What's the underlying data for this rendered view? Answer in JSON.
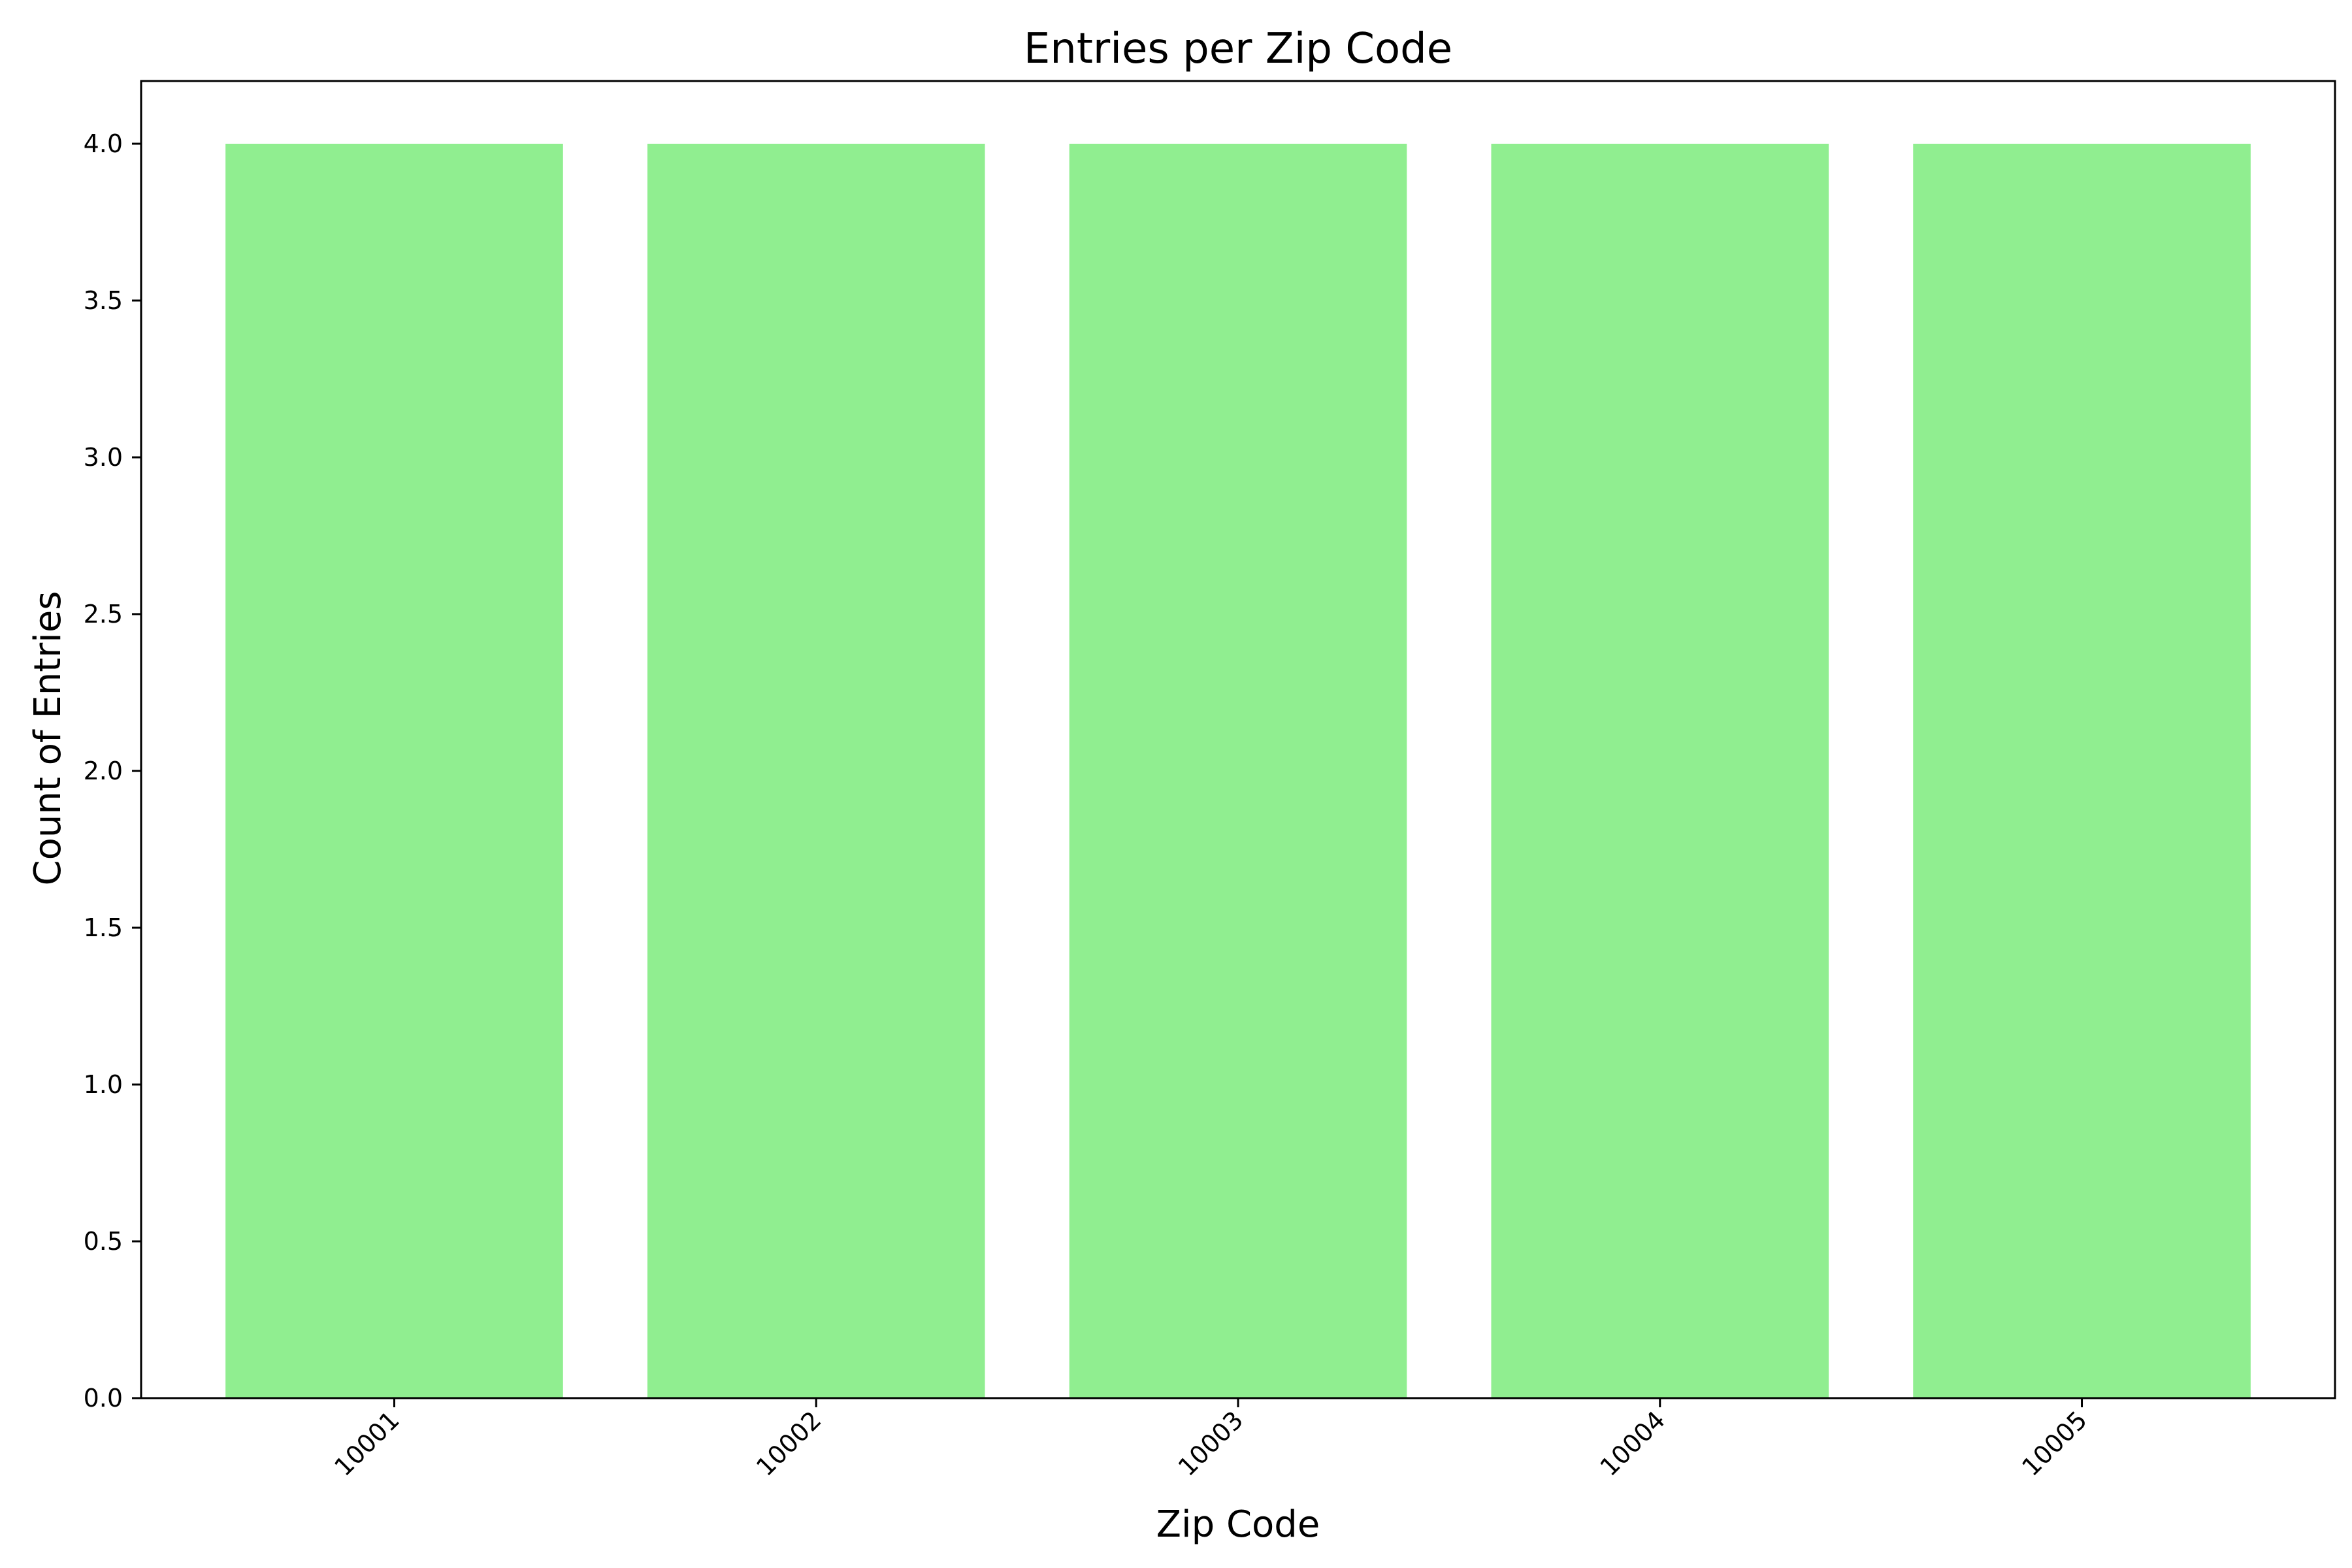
{
  "chart_data": {
    "type": "bar",
    "title": "Entries per Zip Code",
    "xlabel": "Zip Code",
    "ylabel": "Count of Entries",
    "categories": [
      "10001",
      "10002",
      "10003",
      "10004",
      "10005"
    ],
    "values": [
      4,
      4,
      4,
      4,
      4
    ],
    "ylim": [
      0,
      4.2
    ],
    "yticks": [
      "0.0",
      "0.5",
      "1.0",
      "1.5",
      "2.0",
      "2.5",
      "3.0",
      "3.5",
      "4.0"
    ],
    "bar_color": "#90ee90",
    "grid": false,
    "legend": "none"
  }
}
